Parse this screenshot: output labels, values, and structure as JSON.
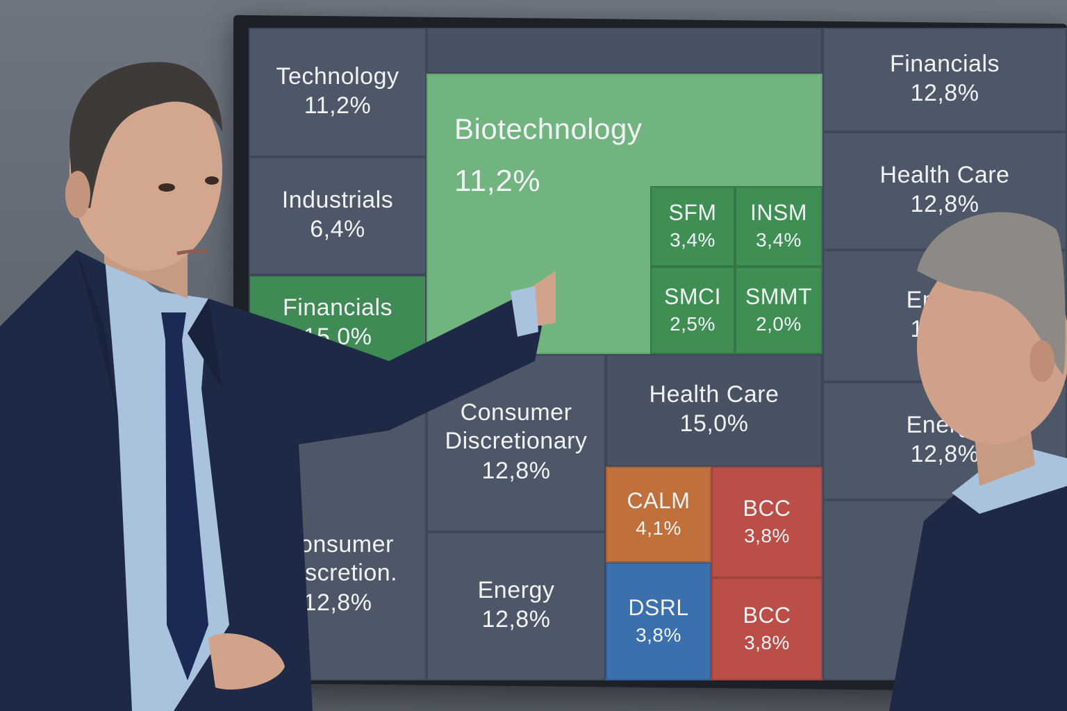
{
  "tiles": {
    "technology": {
      "name": "Technology",
      "value": "11,2%"
    },
    "industrials": {
      "name": "Industrials",
      "value": "6,4%"
    },
    "financials_left": {
      "name": "Financials",
      "value": "15,0%"
    },
    "consumer_left": {
      "name": "Consumer Discretion.",
      "value": "12,8%"
    },
    "biotechnology": {
      "name": "Biotechnology",
      "value": "11,2%"
    },
    "sfm": {
      "name": "SFM",
      "value": "3,4%"
    },
    "insm": {
      "name": "INSM",
      "value": "3,4%"
    },
    "smci": {
      "name": "SMCI",
      "value": "2,5%"
    },
    "smmt": {
      "name": "SMMT",
      "value": "2,0%"
    },
    "consumer_mid": {
      "name": "Consumer Discretionary",
      "value": "12,8%"
    },
    "energy_mid": {
      "name": "Energy",
      "value": "12,8%"
    },
    "health_care_mid": {
      "name": "Health Care",
      "value": "15,0%"
    },
    "calm": {
      "name": "CALM",
      "value": "4,1%"
    },
    "bcc_top": {
      "name": "BCC",
      "value": "3,8%"
    },
    "dsrl": {
      "name": "DSRL",
      "value": "3,8%"
    },
    "bcc_bottom": {
      "name": "BCC",
      "value": "3,8%"
    },
    "financials_right": {
      "name": "Financials",
      "value": "12,8%"
    },
    "health_care_right": {
      "name": "Health Care",
      "value": "12,8%"
    },
    "energy_right_top": {
      "name": "Energy",
      "value": "12,8%"
    },
    "energy_right_bottom": {
      "name": "Energy",
      "value": "12,8%"
    }
  },
  "colors": {
    "slate": "#4d5767",
    "green_light": "#72b47f",
    "green_dark": "#3f8e54",
    "orange": "#c0703a",
    "red": "#bb4f48",
    "blue": "#3b6fad"
  }
}
